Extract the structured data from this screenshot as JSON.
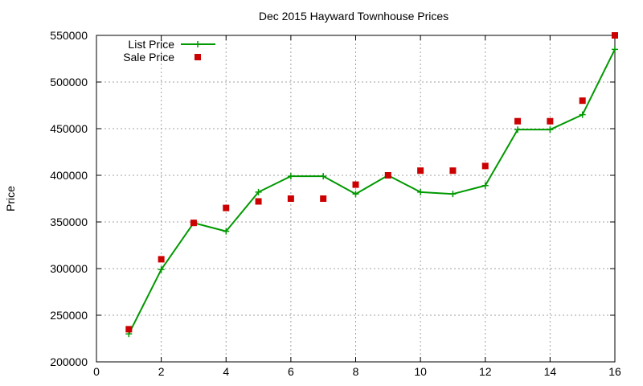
{
  "chart_data": {
    "type": "line",
    "title": "Dec 2015 Hayward Townhouse Prices",
    "xlabel": "",
    "ylabel": "Price",
    "xlim": [
      0,
      16
    ],
    "ylim": [
      200000,
      550000
    ],
    "x_ticks": [
      0,
      2,
      4,
      6,
      8,
      10,
      12,
      14,
      16
    ],
    "y_ticks": [
      200000,
      250000,
      300000,
      350000,
      400000,
      450000,
      500000,
      550000
    ],
    "grid": true,
    "legend_position": "top-left",
    "series": [
      {
        "name": "List Price",
        "style": "line-with-plus-markers",
        "color": "#009900",
        "points": [
          [
            1,
            230000
          ],
          [
            2,
            299000
          ],
          [
            3,
            349000
          ],
          [
            4,
            340000
          ],
          [
            5,
            382000
          ],
          [
            6,
            399000
          ],
          [
            7,
            399000
          ],
          [
            8,
            380000
          ],
          [
            9,
            400000
          ],
          [
            10,
            382000
          ],
          [
            11,
            380000
          ],
          [
            12,
            389000
          ],
          [
            13,
            449000
          ],
          [
            14,
            449000
          ],
          [
            15,
            465000
          ],
          [
            16,
            535000
          ]
        ]
      },
      {
        "name": "Sale Price",
        "style": "square-markers",
        "color": "#cc0000",
        "points": [
          [
            1,
            235000
          ],
          [
            2,
            310000
          ],
          [
            3,
            349000
          ],
          [
            4,
            365000
          ],
          [
            5,
            372000
          ],
          [
            6,
            375000
          ],
          [
            7,
            375000
          ],
          [
            8,
            390000
          ],
          [
            9,
            400000
          ],
          [
            10,
            405000
          ],
          [
            11,
            405000
          ],
          [
            12,
            410000
          ],
          [
            13,
            458000
          ],
          [
            14,
            458000
          ],
          [
            15,
            480000
          ],
          [
            16,
            550000
          ]
        ]
      }
    ]
  }
}
